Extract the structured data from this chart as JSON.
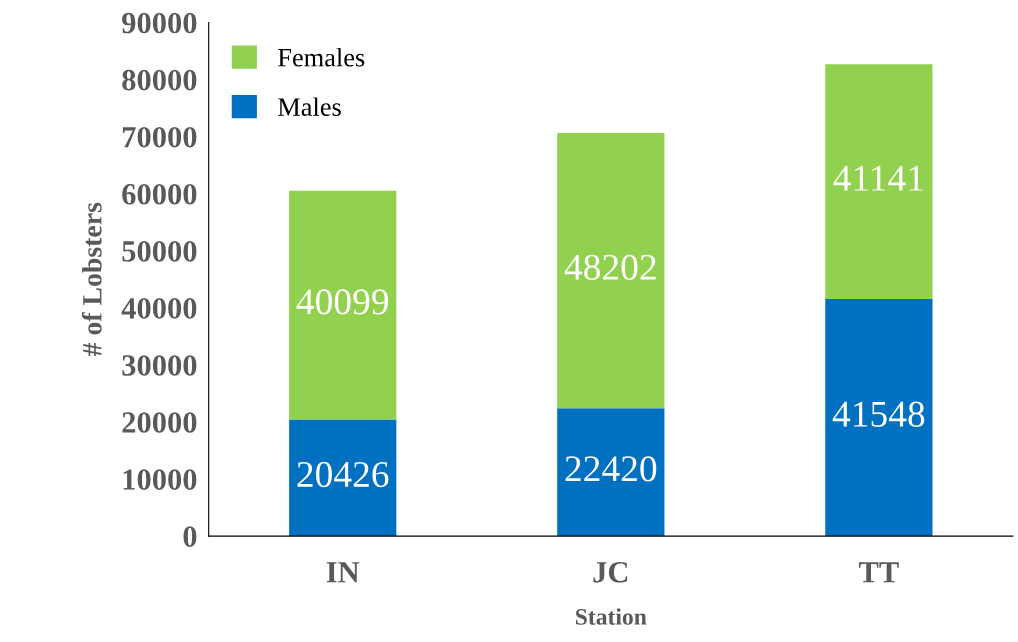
{
  "chart_data": {
    "type": "bar",
    "stacked": true,
    "xlabel": "Station",
    "ylabel": "# of Lobsters",
    "categories": [
      "IN",
      "JC",
      "TT"
    ],
    "series": [
      {
        "name": "Males",
        "color": "#0070c0",
        "values": [
          20426,
          22420,
          41548
        ]
      },
      {
        "name": "Females",
        "color": "#92d050",
        "values": [
          40099,
          48202,
          41141
        ]
      }
    ],
    "ylim": [
      0,
      90000
    ],
    "yticks": [
      0,
      10000,
      20000,
      30000,
      40000,
      50000,
      60000,
      70000,
      80000,
      90000
    ],
    "data_labels": true,
    "legend": "top left",
    "grid": false
  }
}
